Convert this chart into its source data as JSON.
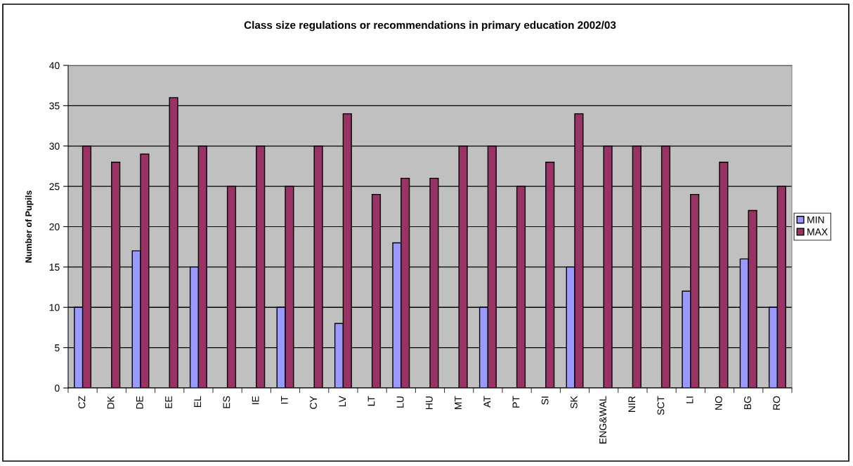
{
  "chart_data": {
    "type": "bar",
    "title": "Class size regulations or recommendations in primary education 2002/03",
    "ylabel": "Number of Pupils",
    "categories": [
      "CZ",
      "DK",
      "DE",
      "EE",
      "EL",
      "ES",
      "IE",
      "IT",
      "CY",
      "LV",
      "LT",
      "LU",
      "HU",
      "MT",
      "AT",
      "PT",
      "SI",
      "SK",
      "ENG&WAL",
      "NIR",
      "SCT",
      "LI",
      "NO",
      "BG",
      "RO"
    ],
    "series": [
      {
        "name": "MIN",
        "color": "#9999ff",
        "values": [
          10,
          null,
          17,
          null,
          15,
          null,
          null,
          10,
          null,
          8,
          null,
          18,
          null,
          null,
          10,
          null,
          null,
          15,
          null,
          null,
          null,
          12,
          null,
          16,
          10
        ]
      },
      {
        "name": "MAX",
        "color": "#993366",
        "values": [
          30,
          28,
          29,
          36,
          30,
          25,
          30,
          25,
          30,
          34,
          24,
          26,
          26,
          30,
          30,
          25,
          28,
          34,
          30,
          30,
          30,
          24,
          28,
          22,
          25
        ]
      }
    ],
    "ylim": [
      0,
      40
    ],
    "yticks": [
      0,
      5,
      10,
      15,
      20,
      25,
      30,
      35,
      40
    ],
    "grid": "y",
    "legend": "right"
  }
}
